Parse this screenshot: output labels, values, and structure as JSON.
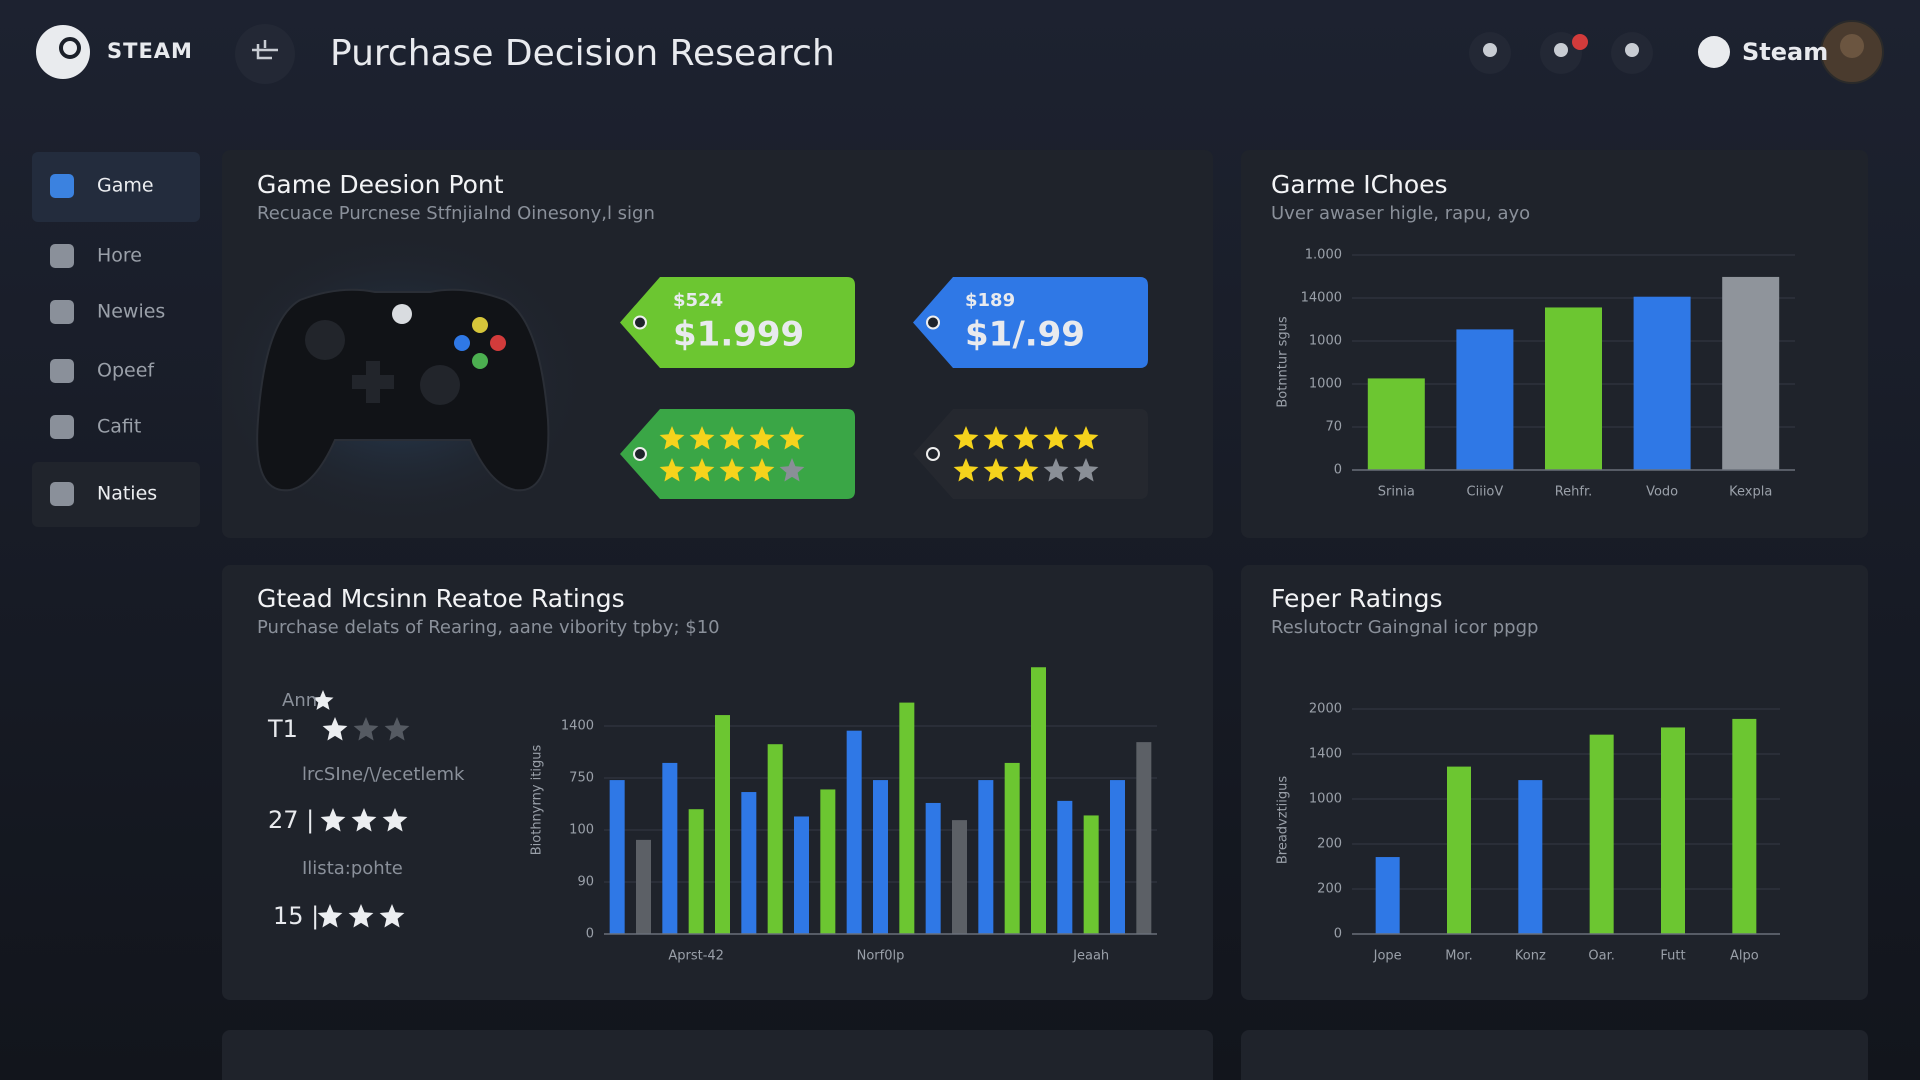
{
  "header": {
    "brand": "STEAM",
    "title": "Purchase Decision Research",
    "account": "Steam"
  },
  "sidebar": {
    "items": [
      "Game",
      "Hore",
      "Newies",
      "Opeef",
      "Cafit",
      "Naties"
    ]
  },
  "panels": [
    {
      "title": "Game Deesion Pont",
      "subtitle": "Recuace Purcnese Stfnjialnd Oinesony,l sign",
      "price_tags": [
        {
          "small": "$524",
          "price": "$1.999"
        },
        {
          "small": "$189",
          "price": "$1/.99"
        }
      ]
    },
    {
      "title": "Garme IChoes",
      "subtitle": "Uver awaser higle, rapu, ayo"
    },
    {
      "title": "Gtead Mcsinn Reatoe Ratings",
      "subtitle": "Purchase delats of Rearing, aane vibority tpby; $10",
      "ratings": [
        "Ann",
        "T1",
        "lrcSIne/\\/ecetlemk",
        "27 |",
        "Ilista:pohte",
        "15 |"
      ]
    },
    {
      "title": "Feper  Ratings",
      "subtitle": "Reslutoctr Gaingnal icor ppgp"
    }
  ],
  "chart_data": [
    {
      "type": "bar",
      "y_label": "Botnntur sgus",
      "categories": [
        "Srinia",
        "CiiioV",
        "Rehfr.",
        "Vodo",
        "Kexpla"
      ],
      "values": [
        2.13,
        3.27,
        3.78,
        4.03,
        4.49
      ],
      "colors": [
        "#6cc631",
        "#2f78e6",
        "#6cc631",
        "#2f78e6",
        "#8f949b"
      ],
      "ylim": [
        0,
        5
      ],
      "yticks": [
        0,
        {
          "value": 1,
          "label": "70"
        },
        {
          "value": 2,
          "label": "1000"
        },
        {
          "value": 3,
          "label": "1000"
        },
        {
          "value": 4,
          "label": "14000"
        },
        {
          "value": 5,
          "label": "1.000"
        }
      ],
      "grid": true
    },
    {
      "type": "bar",
      "y_label": "Biothnyrny itigus",
      "categories": [
        null,
        null,
        null,
        "Aprst-42",
        null,
        null,
        null,
        null,
        null,
        null,
        "Norf0lp",
        null,
        null,
        null,
        null,
        null,
        null,
        null,
        "Jeaah",
        null,
        null
      ],
      "values": [
        2.96,
        1.81,
        3.29,
        2.4,
        4.21,
        2.73,
        3.65,
        2.26,
        2.78,
        3.91,
        2.96,
        4.45,
        2.52,
        2.19,
        2.96,
        3.29,
        5.13,
        2.56,
        2.28,
        2.96,
        3.69
      ],
      "colors": [
        "#2f78e6",
        "#5c6066",
        "#2f78e6",
        "#6cc631",
        "#6cc631",
        "#2f78e6",
        "#6cc631",
        "#2f78e6",
        "#6cc631",
        "#2f78e6",
        "#2f78e6",
        "#6cc631",
        "#2f78e6",
        "#5c6066",
        "#2f78e6",
        "#6cc631",
        "#6cc631",
        "#2f78e6",
        "#6cc631",
        "#2f78e6",
        "#5c6066"
      ],
      "ylim": [
        0,
        5.5
      ],
      "yticks": [
        0,
        {
          "value": 1,
          "label": "90"
        },
        {
          "value": 2,
          "label": "100"
        },
        {
          "value": 3,
          "label": "750"
        },
        {
          "value": 4,
          "label": "1400"
        }
      ],
      "grid": true
    },
    {
      "type": "bar",
      "y_label": "Breadvztiigus",
      "categories": [
        "Jope",
        "Mor.",
        "Konz",
        "Oar.",
        "Futt",
        "Alpo"
      ],
      "values": [
        1.71,
        3.72,
        3.42,
        4.43,
        4.59,
        4.78
      ],
      "colors": [
        "#2f78e6",
        "#6cc631",
        "#2f78e6",
        "#6cc631",
        "#6cc631",
        "#6cc631"
      ],
      "ylim": [
        0,
        5.2
      ],
      "yticks": [
        0,
        {
          "value": 1,
          "label": "200"
        },
        {
          "value": 2,
          "label": "200"
        },
        {
          "value": 3,
          "label": "1000"
        },
        {
          "value": 4,
          "label": "1400"
        },
        {
          "value": 5,
          "label": "2000"
        }
      ],
      "grid": true
    }
  ]
}
